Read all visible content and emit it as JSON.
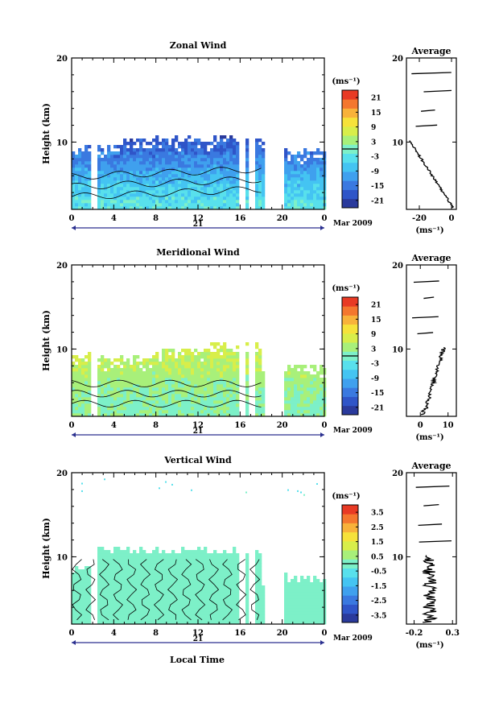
{
  "figure": {
    "xlabel": "Local Time",
    "date_label": "Mar 2009",
    "day_label": "21"
  },
  "chart_data": [
    {
      "type": "heatmap",
      "title": "Zonal Wind",
      "ylabel": "Height (km)",
      "xticks": [
        "0",
        "4",
        "8",
        "12",
        "16",
        "20",
        "0"
      ],
      "yticks": [
        "10",
        "20"
      ],
      "xlim": [
        0,
        24
      ],
      "ylim": [
        2,
        20
      ],
      "colorbar": {
        "unit": "(ms⁻¹)",
        "ticks": [
          "21",
          "15",
          "9",
          "3",
          "-3",
          "-9",
          "-15",
          "-21"
        ],
        "range": [
          -24,
          24
        ]
      },
      "profile": {
        "title": "Average",
        "xlabel": "(ms⁻¹)",
        "xticks": [
          "-20",
          "0"
        ],
        "xlim": [
          -28,
          3
        ],
        "yticks": [
          "10",
          "20"
        ]
      }
    },
    {
      "type": "heatmap",
      "title": "Meridional Wind",
      "ylabel": "Height (km)",
      "xticks": [
        "0",
        "4",
        "8",
        "12",
        "16",
        "20",
        "0"
      ],
      "yticks": [
        "10",
        "20"
      ],
      "xlim": [
        0,
        24
      ],
      "ylim": [
        2,
        20
      ],
      "colorbar": {
        "unit": "(ms⁻¹)",
        "ticks": [
          "21",
          "15",
          "9",
          "3",
          "-3",
          "-9",
          "-15",
          "-21"
        ],
        "range": [
          -24,
          24
        ]
      },
      "profile": {
        "title": "Average",
        "xlabel": "(ms⁻¹)",
        "xticks": [
          "0",
          "10"
        ],
        "xlim": [
          -5,
          13
        ],
        "yticks": [
          "10",
          "20"
        ]
      }
    },
    {
      "type": "heatmap",
      "title": "Vertical Wind",
      "ylabel": "Height (km)",
      "xticks": [
        "0",
        "4",
        "8",
        "12",
        "16",
        "20",
        "0"
      ],
      "yticks": [
        "10",
        "20"
      ],
      "xlim": [
        0,
        24
      ],
      "ylim": [
        2,
        20
      ],
      "colorbar": {
        "unit": "(ms⁻¹)",
        "ticks": [
          "3.5",
          "2.5",
          "1.5",
          "0.5",
          "-0.5",
          "-1.5",
          "-2.5",
          "-3.5"
        ],
        "range": [
          -4,
          4
        ]
      },
      "profile": {
        "title": "Average",
        "xlabel": "(ms⁻¹)",
        "xticks": [
          "-0.2",
          "0.3"
        ],
        "xlim": [
          -0.3,
          0.35
        ],
        "yticks": [
          "10",
          "20"
        ]
      }
    }
  ],
  "colormap": [
    "#2a3a9c",
    "#2f55c8",
    "#3a79e0",
    "#3fa0ee",
    "#44c4f2",
    "#58e0ec",
    "#7df0c8",
    "#a8f07a",
    "#d8ee4a",
    "#f6e23a",
    "#f8b23a",
    "#f4772e",
    "#e83a24"
  ]
}
